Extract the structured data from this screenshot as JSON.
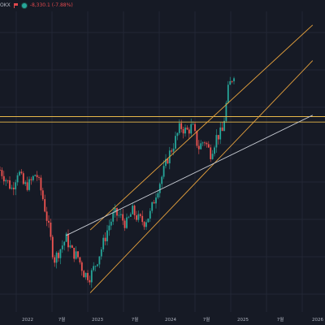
{
  "header": {
    "symbol": "OKX",
    "change": "-8,330.1 (-7.88%)"
  },
  "colors": {
    "background": "#161a25",
    "up": "#26a69a",
    "down": "#ef5350",
    "trendline_orange": "#e8a33d",
    "trendline_white": "#c8ccd4",
    "horizontal_line": "#e8b84a"
  },
  "chart_data": {
    "type": "candlestick",
    "x_tick_labels": [
      "2022",
      "7월",
      "2023",
      "7월",
      "2024",
      "7월",
      "2025",
      "7월",
      "2026"
    ],
    "price_path": [
      {
        "time": "2021-09",
        "value": 0.62
      },
      {
        "time": "2021-11",
        "value": 0.55
      },
      {
        "time": "2021-12",
        "value": 0.62
      },
      {
        "time": "2022-01",
        "value": 0.56
      },
      {
        "time": "2022-02",
        "value": 0.57
      },
      {
        "time": "2022-03",
        "value": 0.61
      },
      {
        "time": "2022-04",
        "value": 0.53
      },
      {
        "time": "2022-05",
        "value": 0.42
      },
      {
        "time": "2022-06",
        "value": 0.29
      },
      {
        "time": "2022-07",
        "value": 0.33
      },
      {
        "time": "2022-08",
        "value": 0.37
      },
      {
        "time": "2022-09",
        "value": 0.32
      },
      {
        "time": "2022-10",
        "value": 0.3
      },
      {
        "time": "2022-11",
        "value": 0.24
      },
      {
        "time": "2022-12",
        "value": 0.23
      },
      {
        "time": "2023-01",
        "value": 0.28
      },
      {
        "time": "2023-02",
        "value": 0.34
      },
      {
        "time": "2023-03",
        "value": 0.41
      },
      {
        "time": "2023-04",
        "value": 0.46
      },
      {
        "time": "2023-05",
        "value": 0.45
      },
      {
        "time": "2023-06",
        "value": 0.42
      },
      {
        "time": "2023-07",
        "value": 0.47
      },
      {
        "time": "2023-08",
        "value": 0.44
      },
      {
        "time": "2023-09",
        "value": 0.43
      },
      {
        "time": "2023-10",
        "value": 0.46
      },
      {
        "time": "2023-11",
        "value": 0.54
      },
      {
        "time": "2023-12",
        "value": 0.6
      },
      {
        "time": "2024-01",
        "value": 0.67
      },
      {
        "time": "2024-02",
        "value": 0.72
      },
      {
        "time": "2024-03",
        "value": 0.78
      },
      {
        "time": "2024-04",
        "value": 0.76
      },
      {
        "time": "2024-05",
        "value": 0.78
      },
      {
        "time": "2024-06",
        "value": 0.7
      },
      {
        "time": "2024-07",
        "value": 0.73
      },
      {
        "time": "2024-08",
        "value": 0.68
      },
      {
        "time": "2024-09",
        "value": 0.74
      },
      {
        "time": "2024-10",
        "value": 0.76
      },
      {
        "time": "2024-11",
        "value": 0.92
      },
      {
        "time": "2024-12",
        "value": 0.98
      }
    ],
    "lines": [
      {
        "name": "horizontal-level-upper",
        "kind": "horizontal",
        "y": 0.815
      },
      {
        "name": "horizontal-level-lower",
        "kind": "horizontal",
        "y": 0.795
      },
      {
        "name": "upper-channel-line",
        "kind": "trend",
        "from": {
          "time": "2022-12",
          "value": 0.4
        },
        "to": {
          "time": "2026-01",
          "value": 1.15
        }
      },
      {
        "name": "lower-channel-line",
        "kind": "trend",
        "from": {
          "time": "2022-12",
          "value": 0.17
        },
        "to": {
          "time": "2026-01",
          "value": 1.02
        }
      },
      {
        "name": "white-trend-line",
        "kind": "trend",
        "from": {
          "time": "2022-08",
          "value": 0.38
        },
        "to": {
          "time": "2026-01",
          "value": 0.82
        }
      }
    ],
    "legend": "none",
    "grid": true
  }
}
